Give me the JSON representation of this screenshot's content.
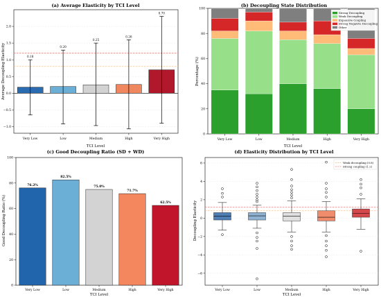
{
  "chart_data": [
    {
      "type": "bar",
      "title": "(a) Average Elasticity by TCI Level",
      "xlabel": "TCI Level",
      "ylabel": "Average Decoupling Elasticity",
      "categories": [
        "Very Low",
        "Low",
        "Medium",
        "High",
        "Very High"
      ],
      "values": [
        0.18,
        0.2,
        0.25,
        0.26,
        0.7
      ],
      "value_labels": [
        "0.18",
        "0.20",
        "0.25",
        "0.26",
        "0.70"
      ],
      "error_low": [
        -0.65,
        -0.92,
        -0.97,
        -1.07,
        -0.9
      ],
      "error_high": [
        1.0,
        1.29,
        1.5,
        1.6,
        2.3
      ],
      "reference_lines": [
        {
          "value": 0.8,
          "color": "#f5c08a"
        },
        {
          "value": 1.2,
          "color": "#f08080"
        }
      ],
      "ylim": [
        -1.2,
        2.5
      ],
      "yticks": [
        "−1.0",
        "−0.5",
        "0.0",
        "0.5",
        "1.0",
        "1.5",
        "2.0"
      ],
      "ytick_values": [
        -1.0,
        -0.5,
        0.0,
        0.5,
        1.0,
        1.5,
        2.0
      ],
      "colors": [
        "#2b6cb0",
        "#6baed6",
        "#d3d3d3",
        "#f0875e",
        "#b2182b"
      ],
      "grid": true
    },
    {
      "type": "bar",
      "stacked": true,
      "title": "(b) Decoupling State Distribution",
      "xlabel": "TCI Level",
      "ylabel": "Percentage (%)",
      "categories": [
        "Very Low",
        "Low",
        "Medium",
        "High",
        "Very High"
      ],
      "series": [
        {
          "name": "Strong Decoupling",
          "color": "#2ca02c",
          "values": [
            35,
            32,
            40,
            36,
            20
          ]
        },
        {
          "name": "Weak Decoupling",
          "color": "#98df8a",
          "values": [
            41,
            50,
            35,
            36,
            43
          ]
        },
        {
          "name": "Expansive Coupling",
          "color": "#ffbb78",
          "values": [
            6,
            8,
            7,
            7,
            5
          ]
        },
        {
          "name": "Strong Negative Decoupling",
          "color": "#d62728",
          "values": [
            10,
            7,
            7,
            11,
            8
          ]
        },
        {
          "name": "Other",
          "color": "#7f7f7f",
          "values": [
            8,
            3,
            11,
            10,
            24
          ]
        }
      ],
      "ylim": [
        0,
        100
      ],
      "yticks": [
        "0",
        "20",
        "40",
        "60",
        "80",
        "100"
      ],
      "ytick_values": [
        0,
        20,
        40,
        60,
        80,
        100
      ],
      "legend_position": "top-right"
    },
    {
      "type": "bar",
      "title": "(c) Good Decoupling Ratio (SD + WD)",
      "xlabel": "TCI Level",
      "ylabel": "Good Decoupling Ratio (%)",
      "categories": [
        "Very Low",
        "Low",
        "Medium",
        "High",
        "Very High"
      ],
      "values": [
        76.2,
        82.5,
        75.0,
        71.7,
        62.5
      ],
      "value_labels": [
        "76.2%",
        "82.5%",
        "75.0%",
        "71.7%",
        "62.5%"
      ],
      "ylim": [
        0,
        100
      ],
      "yticks": [
        "0",
        "20",
        "40",
        "60",
        "80",
        "100"
      ],
      "ytick_values": [
        0,
        20,
        40,
        60,
        80,
        100
      ],
      "colors": [
        "#2166ac",
        "#6baed6",
        "#d3d3d3",
        "#f4875e",
        "#c0152a"
      ]
    },
    {
      "type": "box",
      "title": "(d) Elasticity Distribution by TCI Level",
      "xlabel": "TCI Level",
      "ylabel": "Decoupling Elasticity",
      "categories": [
        "Very Low",
        "Low",
        "Medium",
        "High",
        "Very High"
      ],
      "boxes": [
        {
          "whisker_low": -1.3,
          "q1": -0.2,
          "median": 0.2,
          "q3": 0.6,
          "whisker_high": 1.7,
          "fliers": [
            2.3,
            2.7,
            3.2,
            -1.8
          ]
        },
        {
          "whisker_low": -1.1,
          "q1": -0.2,
          "median": 0.25,
          "q3": 0.6,
          "whisker_high": 1.4,
          "fliers": [
            1.8,
            2.0,
            2.3,
            2.6,
            3.0,
            3.4,
            3.8,
            -1.6,
            -2.1,
            -2.5,
            -3.3,
            -6.6
          ]
        },
        {
          "whisker_low": -1.5,
          "q1": -0.3,
          "median": 0.2,
          "q3": 0.6,
          "whisker_high": 1.9,
          "fliers": [
            2.2,
            2.5,
            2.8,
            3.1,
            3.5,
            4.2,
            5.3,
            -2.0,
            -2.5,
            -3.0,
            -3.4
          ]
        },
        {
          "whisker_low": -1.5,
          "q1": -0.3,
          "median": 0.1,
          "q3": 0.8,
          "whisker_high": 1.8,
          "fliers": [
            2.3,
            2.8,
            3.2,
            3.8,
            6.1,
            -1.9,
            -2.5,
            -3.0,
            -3.5,
            -4.2
          ]
        },
        {
          "whisker_low": -1.2,
          "q1": 0.1,
          "median": 0.5,
          "q3": 1.0,
          "whisker_high": 2.1,
          "fliers": [
            2.6,
            3.3,
            3.7,
            4.2,
            5.6,
            -3.6
          ]
        }
      ],
      "reference_lines": [
        {
          "name": "Weak decoupling (0.8)",
          "value": 0.8,
          "color": "#f5c08a"
        },
        {
          "name": "Strong coupling (1.2)",
          "value": 1.2,
          "color": "#f08080"
        }
      ],
      "ylim": [
        -7.3,
        6.6
      ],
      "yticks": [
        "−6",
        "−4",
        "−2",
        "0",
        "2",
        "4",
        "6"
      ],
      "ytick_values": [
        -6,
        -4,
        -2,
        0,
        2,
        4,
        6
      ],
      "colors": [
        "#4f7fb5",
        "#8fb2d3",
        "#e0e0e0",
        "#f08c6b",
        "#d4484c"
      ],
      "legend_position": "top-right",
      "grid": true
    }
  ]
}
